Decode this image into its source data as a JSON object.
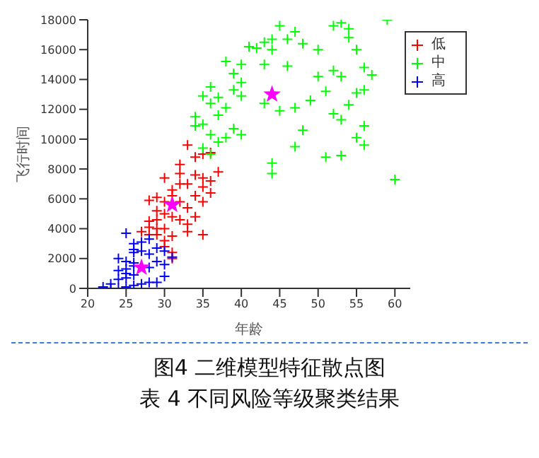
{
  "chart_data": {
    "type": "scatter",
    "xlabel": "年龄",
    "ylabel": "飞行时间",
    "xlim": [
      20,
      62
    ],
    "xticks": [
      20,
      25,
      30,
      35,
      40,
      45,
      50,
      55,
      60
    ],
    "ylim": [
      0,
      18000
    ],
    "yticks": [
      0,
      2000,
      4000,
      6000,
      8000,
      10000,
      12000,
      14000,
      16000,
      18000
    ],
    "grid": false,
    "legend": "top right",
    "annotations": [
      "图4  二维模型特征散点图",
      "表 4 不同风险等级聚类结果"
    ],
    "series": [
      {
        "name": "低",
        "color": "#ff0000",
        "marker": "cross",
        "x": [
          27,
          28,
          28,
          28,
          29,
          29,
          29,
          29,
          30,
          30,
          30,
          30,
          30,
          31,
          31,
          31,
          31,
          31,
          32,
          32,
          32,
          32,
          33,
          33,
          33,
          33,
          34,
          34,
          34,
          34,
          35,
          35,
          35,
          35,
          35,
          36,
          36,
          36,
          37,
          30,
          31,
          32,
          33,
          28,
          29
        ],
        "values": [
          3800,
          4500,
          3600,
          5900,
          3600,
          4600,
          5200,
          6100,
          2800,
          4000,
          5000,
          5800,
          7400,
          2000,
          3500,
          4800,
          6200,
          6600,
          4600,
          5800,
          7000,
          8300,
          3800,
          5400,
          7000,
          9600,
          4800,
          6200,
          7600,
          8800,
          3600,
          5800,
          6800,
          7400,
          9000,
          6400,
          7200,
          9100,
          7800,
          3200,
          2400,
          7700,
          4300,
          4100,
          4000
        ]
      },
      {
        "name": "中",
        "color": "#00ff00",
        "marker": "cross",
        "x": [
          34,
          34,
          35,
          35,
          35,
          36,
          36,
          36,
          36,
          37,
          37,
          37,
          38,
          38,
          38,
          39,
          39,
          39,
          40,
          40,
          40,
          40,
          41,
          43,
          43,
          44,
          44,
          44,
          45,
          45,
          46,
          46,
          47,
          47,
          47,
          48,
          48,
          49,
          50,
          50,
          51,
          51,
          52,
          52,
          52,
          53,
          53,
          53,
          53,
          54,
          54,
          54,
          55,
          55,
          55,
          56,
          56,
          56,
          56,
          57,
          59,
          60,
          44,
          43,
          42
        ],
        "values": [
          10900,
          11500,
          9400,
          11000,
          12900,
          9000,
          10300,
          12400,
          13500,
          9800,
          11600,
          12800,
          10100,
          12100,
          15200,
          10700,
          13300,
          14400,
          10300,
          12900,
          13800,
          15000,
          16200,
          12400,
          15000,
          7700,
          8400,
          16700,
          11900,
          17600,
          14900,
          16700,
          9500,
          12100,
          17200,
          10600,
          16400,
          12600,
          14200,
          16000,
          8800,
          13200,
          11700,
          14600,
          17600,
          8900,
          11300,
          14200,
          17800,
          12300,
          16800,
          17400,
          10100,
          13100,
          16000,
          9600,
          10900,
          13300,
          14800,
          14300,
          18000,
          7300,
          16000,
          16500,
          16100
        ]
      },
      {
        "name": "高",
        "color": "#0000ff",
        "marker": "cross",
        "x": [
          22,
          23,
          23,
          24,
          24,
          24,
          24,
          25,
          25,
          25,
          25,
          25,
          26,
          26,
          26,
          26,
          26,
          26,
          27,
          27,
          27,
          28,
          28,
          28,
          28,
          29,
          29,
          29,
          30,
          30,
          30,
          31,
          25,
          26
        ],
        "values": [
          100,
          0,
          300,
          0,
          600,
          1200,
          2000,
          100,
          700,
          1300,
          1800,
          3700,
          200,
          900,
          1500,
          2400,
          3000,
          2600,
          300,
          2500,
          3100,
          400,
          1400,
          2300,
          3300,
          400,
          1800,
          2700,
          800,
          1600,
          2500,
          2100,
          1000,
          1700
        ]
      },
      {
        "color": "#ff00ff",
        "marker": "star",
        "x": [
          44,
          31,
          27
        ],
        "values": [
          13000,
          5600,
          1400
        ]
      }
    ]
  }
}
